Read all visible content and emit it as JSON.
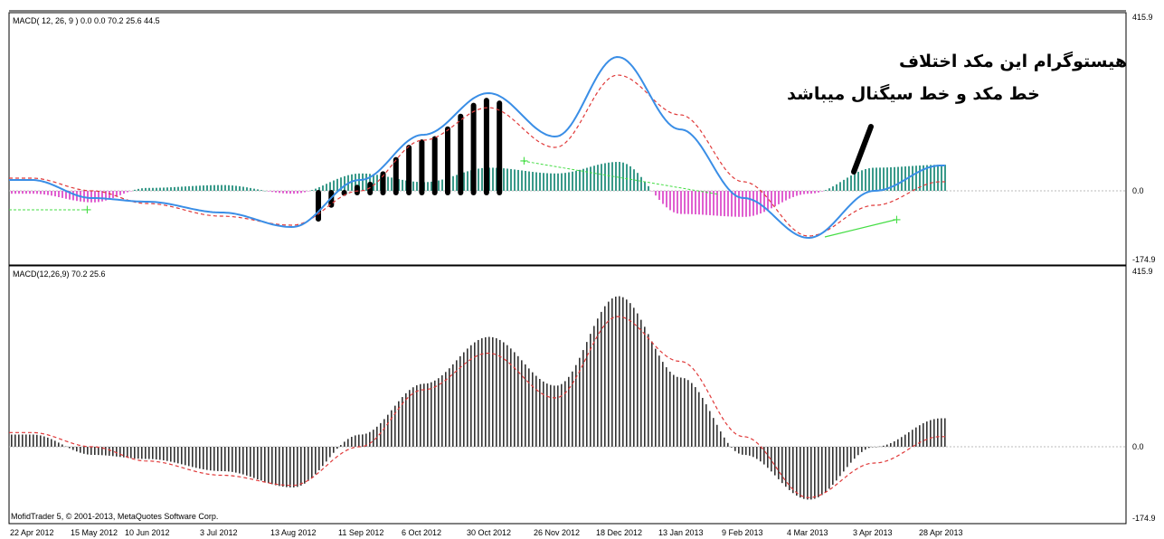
{
  "colors": {
    "macd_line": "#3a8ee6",
    "signal_line": "#e03a3a",
    "hist_pos": "#3a9a8a",
    "hist_neg": "#e060d0",
    "hist_overlay": "#000000",
    "diverge_green": "#44dd44",
    "gray_hist": "#333333",
    "zero_line": "#bbbbbb"
  },
  "top_panel": {
    "label": "MACD( 12, 26, 9 ) 0.0 0.0 70.2 25.6 44.5",
    "y_top": "415.9",
    "y_zero": "0.0",
    "y_bottom": "-174.9"
  },
  "bottom_panel": {
    "label": "MACD(12,26,9) 70.2 25.6",
    "y_top": "415.9",
    "y_zero": "0.0",
    "y_bottom": "-174.9"
  },
  "annotation": {
    "line1": "هیستوگرام این مکد اختلاف",
    "line2": "خط مکد و خط سیگنال میباشد"
  },
  "copyright": "MofidTrader 5, © 2001-2013, MetaQuotes Software Corp.",
  "chart_data": {
    "type": "line",
    "x": [
      "22 Apr 2012",
      "15 May 2012",
      "10 Jun 2012",
      "3 Jul 2012",
      "13 Aug 2012",
      "11 Sep 2012",
      "6 Oct 2012",
      "30 Oct 2012",
      "26 Nov 2012",
      "18 Dec 2012",
      "13 Jan 2013",
      "9 Feb 2013",
      "4 Mar 2013",
      "3 Apr 2013",
      "28 Apr 2013"
    ],
    "macd": [
      30,
      -20,
      -30,
      -60,
      -100,
      30,
      155,
      270,
      150,
      370,
      170,
      -20,
      -130,
      0,
      70
    ],
    "signal": [
      35,
      0,
      -35,
      -70,
      -95,
      0,
      140,
      230,
      120,
      320,
      210,
      25,
      -125,
      -40,
      25
    ],
    "ylim": [
      -174.9,
      415.9
    ]
  }
}
